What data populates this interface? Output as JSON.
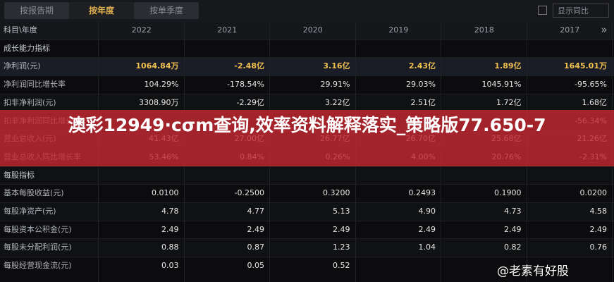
{
  "tabs": [
    "按报告期",
    "按年度",
    "按单季度"
  ],
  "active_tab": 1,
  "checkbox_label": "显示同比",
  "table": {
    "header": [
      "科目\\年度",
      "2022",
      "2021",
      "2020",
      "2019",
      "2018",
      "2017"
    ],
    "header_more": "»",
    "rows": [
      {
        "label": "成长能力指标",
        "section": true
      },
      {
        "label": "净利润(元)",
        "highlight": true,
        "values": [
          "1064.84万",
          "-2.48亿",
          "3.16亿",
          "2.43亿",
          "1.89亿",
          "1645.01万"
        ]
      },
      {
        "label": "净利润同比增长率",
        "values": [
          "104.29%",
          "-178.54%",
          "29.91%",
          "29.03%",
          "1045.91%",
          "-95.65%"
        ]
      },
      {
        "label": "扣非净利润(元)",
        "values": [
          "3308.90万",
          "-2.29亿",
          "3.22亿",
          "2.51亿",
          "1.72亿",
          "1.68亿"
        ]
      },
      {
        "label": "扣非净利润同比增长率",
        "values": [
          null,
          null,
          null,
          null,
          null,
          "-56.34%"
        ]
      },
      {
        "label": "营业总收入(元)",
        "values": [
          "41.43亿",
          "27.00亿",
          "26.77亿",
          "26.70亿",
          "25.68亿",
          "21.26亿"
        ]
      },
      {
        "label": "营业总收入同比增长率",
        "values": [
          "53.46%",
          "0.84%",
          "0.26%",
          "4.00%",
          "20.76%",
          "-2.31%"
        ]
      },
      {
        "label": "每股指标",
        "section": true
      },
      {
        "label": "基本每股收益(元)",
        "values": [
          "0.0100",
          "-0.2500",
          "0.3200",
          "0.2493",
          "0.1900",
          "0.0200"
        ]
      },
      {
        "label": "每股净资产(元)",
        "values": [
          "4.78",
          "4.77",
          "5.13",
          "4.90",
          "4.73",
          "4.58"
        ]
      },
      {
        "label": "每股资本公积金(元)",
        "values": [
          "2.49",
          "2.49",
          "2.49",
          "2.49",
          "2.49",
          "2.49"
        ]
      },
      {
        "label": "每股未分配利润(元)",
        "values": [
          "0.88",
          "0.87",
          "1.23",
          "1.04",
          "0.82",
          "0.76"
        ]
      },
      {
        "label": "每股经营现金流(元)",
        "values": [
          "0.03",
          "0.05",
          "0.52",
          null,
          null,
          null
        ]
      }
    ]
  },
  "banner": "澳彩12949·cσm查询,效率资料解释落实_策略版77.650-7",
  "watermark": "@老素有好股"
}
